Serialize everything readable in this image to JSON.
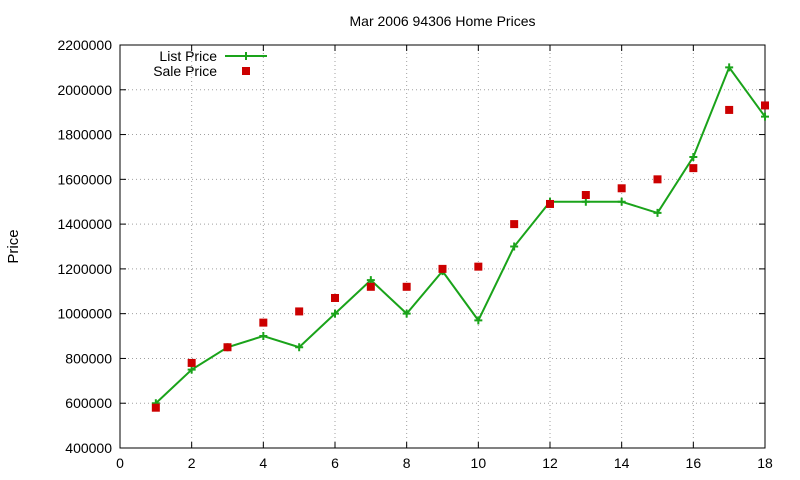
{
  "chart_data": {
    "type": "line",
    "title": "Mar 2006 94306 Home Prices",
    "xlabel": "",
    "ylabel": "Price",
    "xlim": [
      0,
      18
    ],
    "ylim": [
      400000,
      2200000
    ],
    "xticks": [
      0,
      2,
      4,
      6,
      8,
      10,
      12,
      14,
      16,
      18
    ],
    "yticks": [
      400000,
      600000,
      800000,
      1000000,
      1200000,
      1400000,
      1600000,
      1800000,
      2000000,
      2200000
    ],
    "xtick_labels": [
      "0",
      "2",
      "4",
      "6",
      "8",
      "10",
      "12",
      "14",
      "16",
      "18"
    ],
    "ytick_labels": [
      "400000",
      "600000",
      "800000",
      "1000000",
      "1200000",
      "1400000",
      "1600000",
      "1800000",
      "2000000",
      "2200000"
    ],
    "grid": true,
    "legend_position": "top-left",
    "series": [
      {
        "name": "List Price",
        "style": "line-with-plus-markers",
        "color": "#1aa31a",
        "x": [
          1,
          2,
          3,
          4,
          5,
          6,
          7,
          8,
          9,
          10,
          11,
          12,
          13,
          14,
          15,
          16,
          17,
          18
        ],
        "y": [
          600000,
          750000,
          850000,
          900000,
          850000,
          1000000,
          1150000,
          1000000,
          1190000,
          970000,
          1300000,
          1500000,
          1500000,
          1500000,
          1450000,
          1700000,
          2100000,
          1880000
        ]
      },
      {
        "name": "Sale Price",
        "style": "square-points",
        "color": "#cc0000",
        "x": [
          1,
          2,
          3,
          4,
          5,
          6,
          7,
          8,
          9,
          10,
          11,
          12,
          13,
          14,
          15,
          16,
          17,
          18
        ],
        "y": [
          580000,
          780000,
          850000,
          960000,
          1010000,
          1070000,
          1120000,
          1120000,
          1200000,
          1210000,
          1400000,
          1490000,
          1530000,
          1560000,
          1600000,
          1650000,
          1910000,
          1930000
        ]
      }
    ]
  }
}
